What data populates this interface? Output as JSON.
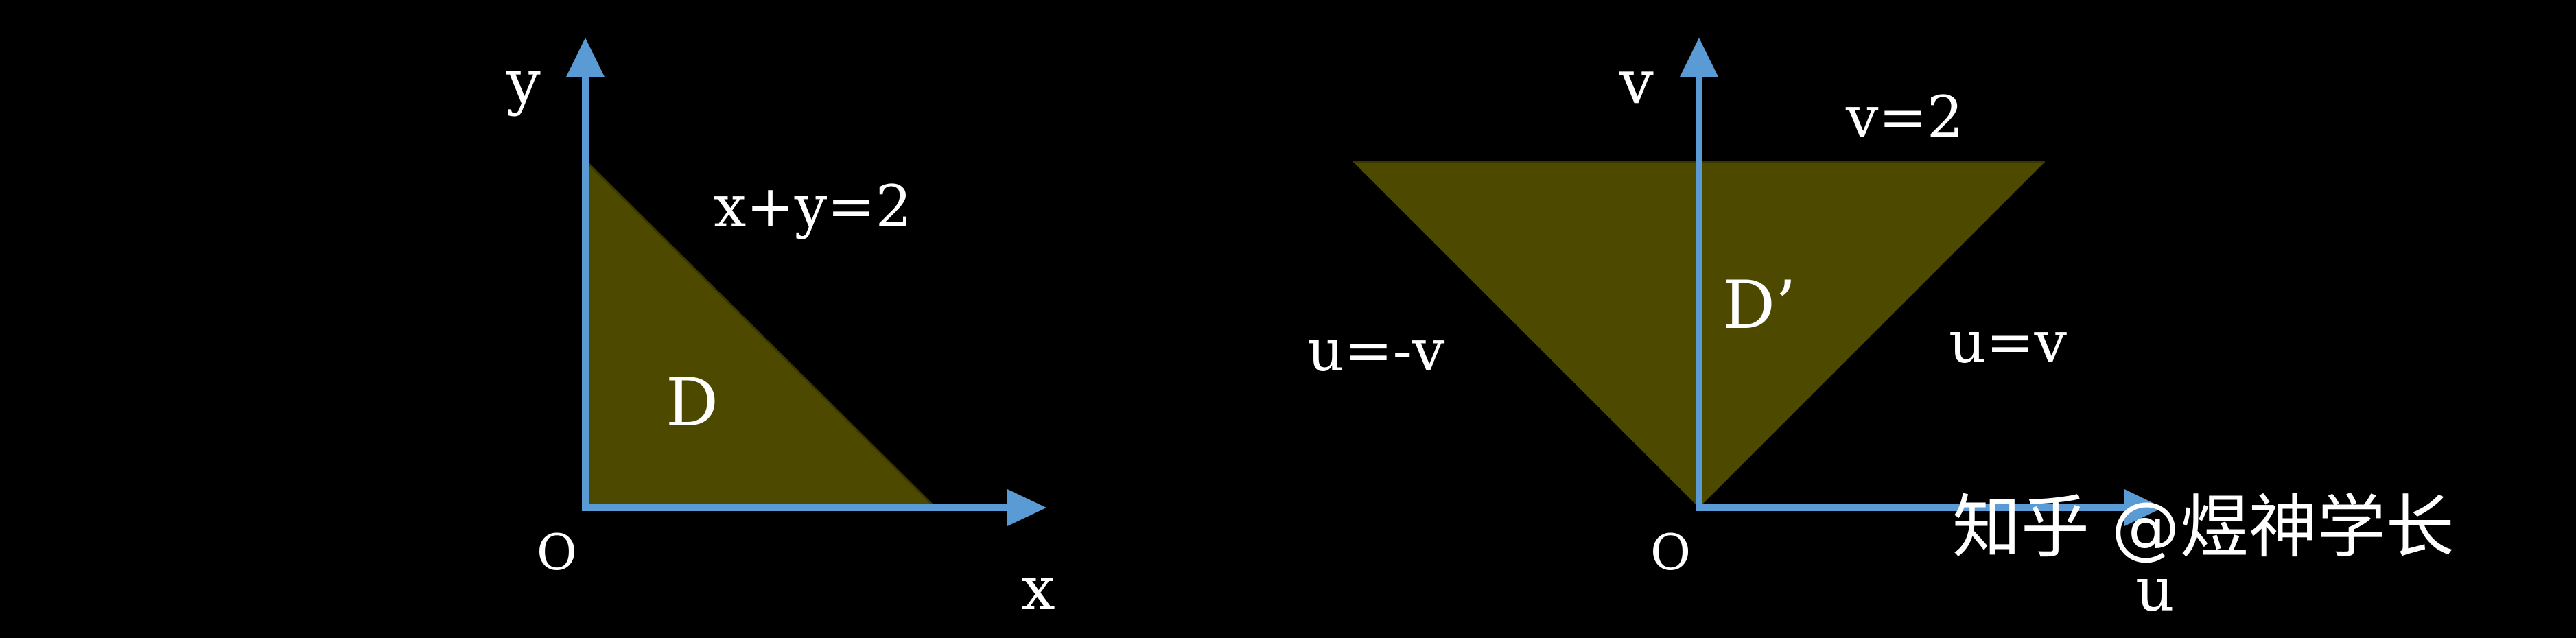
{
  "colors": {
    "background": "#000000",
    "region_fill": "#4d4a00",
    "axis": "#5b9bd5",
    "text": "#ffffff"
  },
  "left_diagram": {
    "x_axis_label": "x",
    "y_axis_label": "y",
    "origin_label": "O",
    "line_label": "x+y=2",
    "region_label": "D"
  },
  "right_diagram": {
    "u_axis_label": "u",
    "v_axis_label": "v",
    "origin_label": "O",
    "top_line_label": "v=2",
    "left_line_label": "u=-v",
    "right_line_label": "u=v",
    "region_label": "D’"
  },
  "watermark": "知乎 @煜神学长"
}
